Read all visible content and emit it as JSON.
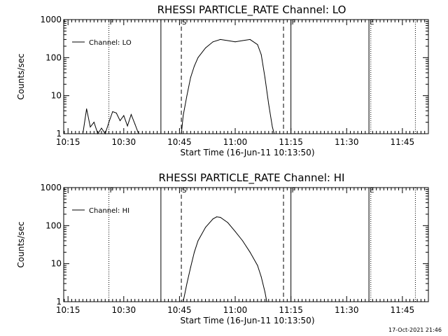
{
  "chart_data": [
    {
      "type": "line",
      "title": "RHESSI PARTICLE_RATE Channel: LO",
      "xlabel": "Start Time (16-Jun-11 10:13:50)",
      "ylabel": "Counts/sec",
      "yscale": "log",
      "ylim": [
        1,
        1000
      ],
      "xlim": [
        "10:13:50",
        "11:52:00"
      ],
      "x_ticks": [
        "10:15",
        "10:30",
        "10:45",
        "11:00",
        "11:15",
        "11:30",
        "11:45"
      ],
      "y_ticks": [
        "1",
        "10",
        "100",
        "1000"
      ],
      "grid": false,
      "legend": {
        "position": "top-left",
        "entries": [
          "Channel: LO"
        ]
      },
      "series": [
        {
          "name": "Channel: LO",
          "x": [
            "10:19:00",
            "10:20:00",
            "10:21:00",
            "10:22:00",
            "10:23:00",
            "10:24:00",
            "10:25:00",
            "10:26:00",
            "10:27:00",
            "10:28:00",
            "10:29:00",
            "10:30:00",
            "10:31:00",
            "10:32:00",
            "10:33:00",
            "10:34:00",
            "10:45:30",
            "10:46:00",
            "10:47:00",
            "10:48:00",
            "10:49:00",
            "10:50:00",
            "10:52:00",
            "10:54:00",
            "10:56:00",
            "10:58:00",
            "11:00:00",
            "11:02:00",
            "11:04:00",
            "11:06:00",
            "11:07:00",
            "11:08:00",
            "11:09:00",
            "11:10:00",
            "11:10:30"
          ],
          "y": [
            1.0,
            4.5,
            1.5,
            2.0,
            1.0,
            1.4,
            1.0,
            2.0,
            3.8,
            3.5,
            2.2,
            3.0,
            1.6,
            3.2,
            1.8,
            1.0,
            1.0,
            3.0,
            10,
            30,
            60,
            100,
            180,
            260,
            300,
            280,
            260,
            280,
            300,
            220,
            120,
            30,
            6,
            1.5,
            1.0
          ]
        }
      ],
      "markers": [
        {
          "label": "F",
          "at": "10:26:00",
          "style": "dotted"
        },
        {
          "label": "",
          "at": "10:40:00",
          "style": "solid"
        },
        {
          "label": "S",
          "at": "10:45:30",
          "style": "dashed"
        },
        {
          "label": "",
          "at": "11:13:00",
          "style": "dashed"
        },
        {
          "label": "F",
          "at": "11:15:00",
          "style": "solid"
        },
        {
          "label": "E",
          "at": "11:36:00",
          "style": "solid"
        },
        {
          "label": "",
          "at": "11:36:30",
          "style": "dotted"
        },
        {
          "label": "",
          "at": "11:48:30",
          "style": "dotted"
        }
      ]
    },
    {
      "type": "line",
      "title": "RHESSI PARTICLE_RATE Channel: HI",
      "xlabel": "Start Time (16-Jun-11 10:13:50)",
      "ylabel": "Counts/sec",
      "yscale": "log",
      "ylim": [
        1,
        1000
      ],
      "xlim": [
        "10:13:50",
        "11:52:00"
      ],
      "x_ticks": [
        "10:15",
        "10:30",
        "10:45",
        "11:00",
        "11:15",
        "11:30",
        "11:45"
      ],
      "y_ticks": [
        "1",
        "10",
        "100",
        "1000"
      ],
      "grid": false,
      "legend": {
        "position": "top-left",
        "entries": [
          "Channel: HI"
        ]
      },
      "series": [
        {
          "name": "Channel: HI",
          "x": [
            "10:46:00",
            "10:47:00",
            "10:48:00",
            "10:49:00",
            "10:50:00",
            "10:52:00",
            "10:54:00",
            "10:55:00",
            "10:56:00",
            "10:58:00",
            "11:00:00",
            "11:02:00",
            "11:04:00",
            "11:06:00",
            "11:07:00",
            "11:08:00",
            "11:08:30"
          ],
          "y": [
            1.0,
            3.0,
            8.0,
            20,
            40,
            90,
            150,
            170,
            165,
            120,
            70,
            40,
            20,
            9,
            4.5,
            1.8,
            1.0
          ]
        }
      ],
      "markers": [
        {
          "label": "F",
          "at": "10:26:00",
          "style": "dotted"
        },
        {
          "label": "",
          "at": "10:40:00",
          "style": "solid"
        },
        {
          "label": "S",
          "at": "10:45:30",
          "style": "dashed"
        },
        {
          "label": "",
          "at": "11:13:00",
          "style": "dashed"
        },
        {
          "label": "F",
          "at": "11:15:00",
          "style": "solid"
        },
        {
          "label": "E",
          "at": "11:36:00",
          "style": "solid"
        },
        {
          "label": "",
          "at": "11:36:30",
          "style": "dotted"
        },
        {
          "label": "",
          "at": "11:48:30",
          "style": "dotted"
        }
      ]
    }
  ],
  "footer": {
    "timestamp": "17-Oct-2021 21:46"
  }
}
